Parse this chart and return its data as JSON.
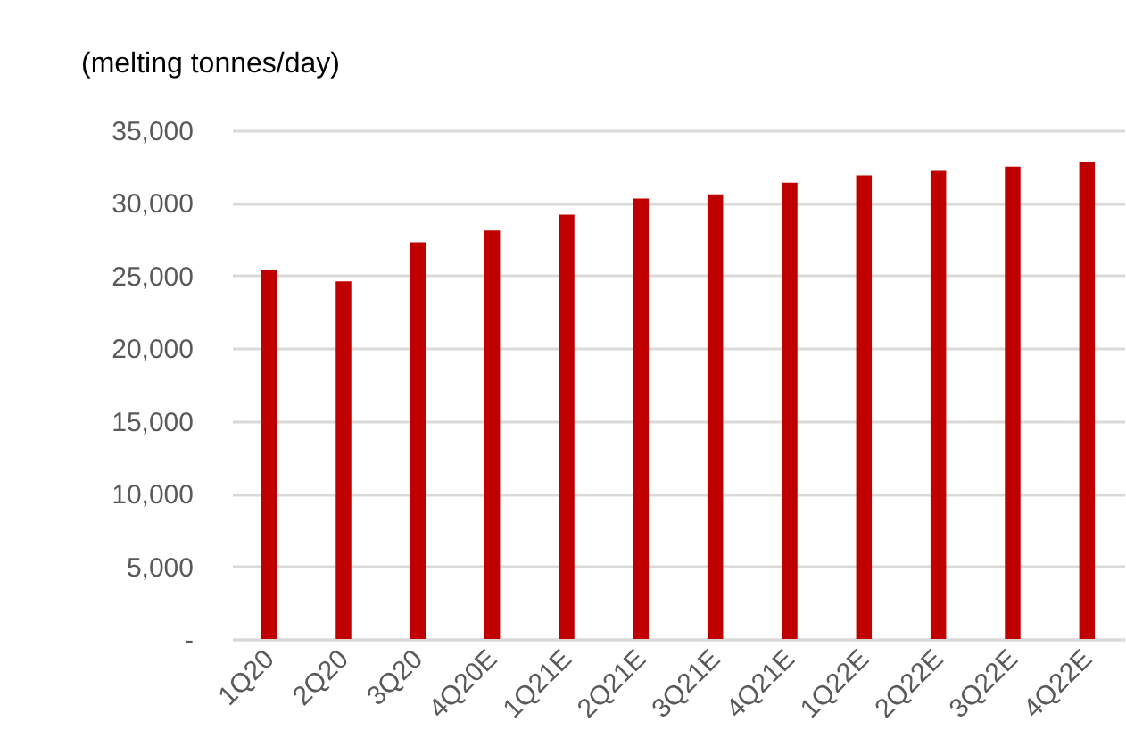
{
  "chart_data": {
    "type": "bar",
    "ylabel": "(melting tonnes/day)",
    "categories": [
      "1Q20",
      "2Q20",
      "3Q20",
      "4Q20E",
      "1Q21E",
      "2Q21E",
      "3Q21E",
      "4Q21E",
      "1Q22E",
      "2Q22E",
      "3Q22E",
      "4Q22E"
    ],
    "values": [
      25400,
      24600,
      27300,
      28100,
      29200,
      30300,
      30600,
      31400,
      31900,
      32200,
      32500,
      32800
    ],
    "color": "#c00000",
    "ylim": [
      0,
      35000
    ],
    "yticks": [
      {
        "value": 0,
        "label": "-"
      },
      {
        "value": 5000,
        "label": "5,000"
      },
      {
        "value": 10000,
        "label": "10,000"
      },
      {
        "value": 15000,
        "label": "15,000"
      },
      {
        "value": 20000,
        "label": "20,000"
      },
      {
        "value": 25000,
        "label": "25,000"
      },
      {
        "value": 30000,
        "label": "30,000"
      },
      {
        "value": 35000,
        "label": "35,000"
      }
    ],
    "grid": "y"
  }
}
